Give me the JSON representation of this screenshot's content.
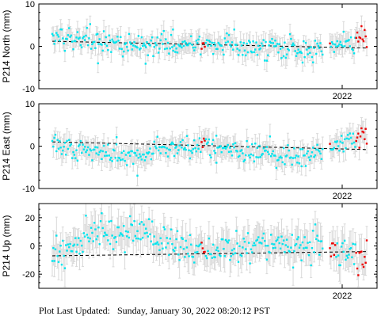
{
  "footer": {
    "label": "Plot Last Updated:",
    "value": "Sunday, January 30, 2022 08:20:12 PST"
  },
  "colors": {
    "primary_points": "#00e5ee",
    "recent_points": "#ee0000",
    "error_bars": "#d9d9d9",
    "trend_line": "#000000"
  },
  "chart_data": [
    {
      "type": "scatter",
      "ylabel": "P214 North (mm)",
      "ylim": [
        -10,
        10
      ],
      "yticks": [
        10,
        0,
        -10
      ],
      "x_tick_label": "2022",
      "trend": {
        "start": 1.2,
        "end": -0.4
      },
      "noise": 1.4,
      "error": 2.2,
      "outliers": 3,
      "recent": {
        "start": 0.86,
        "gap": 0.09,
        "offset": 0.0
      },
      "drift": [
        [
          0.0,
          2.5
        ],
        [
          0.08,
          1.6
        ],
        [
          0.2,
          0.5
        ],
        [
          0.4,
          0.4
        ],
        [
          0.6,
          0.0
        ],
        [
          0.8,
          -1.0
        ],
        [
          0.87,
          -0.4
        ],
        [
          1.0,
          1.2
        ]
      ],
      "red_clusters": [
        [
          0.472,
          0.485,
          0.0
        ],
        [
          0.86,
          0.875,
          0.5
        ],
        [
          0.965,
          1.0,
          1.2
        ]
      ]
    },
    {
      "type": "scatter",
      "ylabel": "P214 East (mm)",
      "ylim": [
        -10,
        10
      ],
      "yticks": [
        10,
        0,
        -10
      ],
      "x_tick_label": "2022",
      "trend": {
        "start": 1.0,
        "end": -0.8
      },
      "noise": 1.2,
      "error": 2.4,
      "outliers": 3,
      "recent": {
        "start": 0.86,
        "gap": 0.09,
        "offset": 0.0
      },
      "drift": [
        [
          0.0,
          0.8
        ],
        [
          0.1,
          -1.0
        ],
        [
          0.2,
          -2.5
        ],
        [
          0.35,
          -0.5
        ],
        [
          0.5,
          0.2
        ],
        [
          0.65,
          -1.5
        ],
        [
          0.8,
          -2.8
        ],
        [
          0.86,
          -0.6
        ],
        [
          1.0,
          1.5
        ]
      ],
      "red_clusters": [
        [
          0.472,
          0.485,
          0.4
        ],
        [
          0.86,
          0.875,
          -0.6
        ],
        [
          0.965,
          1.0,
          2.8
        ]
      ]
    },
    {
      "type": "scatter",
      "ylabel": "P214 Up (mm)",
      "ylim": [
        -30,
        30
      ],
      "yticks": [
        20,
        0,
        -20
      ],
      "x_tick_label": "2022",
      "trend": {
        "start": -7.0,
        "end": -4.0
      },
      "noise": 6.0,
      "error": 11.0,
      "outliers": 0,
      "recent": {
        "start": 0.86,
        "gap": 0.09,
        "offset": 0.0
      },
      "drift": [
        [
          0.0,
          -6.0
        ],
        [
          0.1,
          5.0
        ],
        [
          0.25,
          12.0
        ],
        [
          0.35,
          4.0
        ],
        [
          0.5,
          -4.0
        ],
        [
          0.65,
          2.0
        ],
        [
          0.8,
          0.0
        ],
        [
          0.9,
          -2.0
        ],
        [
          1.0,
          -8.0
        ]
      ],
      "red_clusters": [
        [
          0.472,
          0.485,
          -3.0
        ],
        [
          0.86,
          0.89,
          -3.0
        ],
        [
          0.965,
          1.0,
          -9.0
        ]
      ]
    }
  ]
}
